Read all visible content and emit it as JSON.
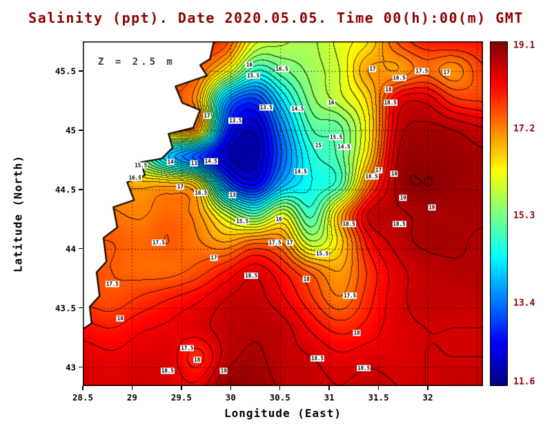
{
  "title": "Salinity (ppt). Date 2020.05.05. Time 00(h):00(m) GMT",
  "annotation": "Z = 2.5 m",
  "axes": {
    "x_label": "Longitude (East)",
    "y_label": "Latitude (North)",
    "x_ticks": [
      {
        "value": 28.5,
        "label": "28.5"
      },
      {
        "value": 29,
        "label": "29"
      },
      {
        "value": 29.5,
        "label": "29.5"
      },
      {
        "value": 30,
        "label": "30"
      },
      {
        "value": 30.5,
        "label": "30.5"
      },
      {
        "value": 31,
        "label": "31"
      },
      {
        "value": 31.5,
        "label": "31.5"
      },
      {
        "value": 32,
        "label": "32"
      }
    ],
    "y_ticks": [
      {
        "value": 45.5,
        "label": "45.5"
      },
      {
        "value": 45,
        "label": "45"
      },
      {
        "value": 44.5,
        "label": "44.5"
      },
      {
        "value": 44,
        "label": "44"
      },
      {
        "value": 43.5,
        "label": "43.5"
      },
      {
        "value": 43,
        "label": "43"
      }
    ],
    "x_gridlines": [
      29,
      29.5,
      30,
      30.5,
      31,
      31.5,
      32,
      32.5
    ],
    "y_gridlines": [
      43,
      43.5,
      44,
      44.5,
      45,
      45.5
    ]
  },
  "colorbar": {
    "min": 11.6,
    "max": 19.1,
    "tick_labels": [
      {
        "value": 19.1,
        "label": "19.1"
      },
      {
        "value": 17.2,
        "label": "17.2"
      },
      {
        "value": 15.3,
        "label": "15.3"
      },
      {
        "value": 13.4,
        "label": "13.4"
      },
      {
        "value": 11.6,
        "label": "11.6"
      }
    ]
  },
  "colors": {
    "title_text": "#8b0000",
    "colorbar_label_text": "#8b0000",
    "axis_text": "#000000",
    "annotation_text": "#3c3c3c",
    "land_fill": "#ffffff",
    "coastline": "#000000",
    "contour_line": "#000000",
    "gridline": "rgba(0,0,0,0.65)"
  },
  "chart_data": {
    "type": "heatmap",
    "variable": "Salinity (ppt)",
    "depth_label": "Z = 2.5 m",
    "datetime": "2020.05.05 00(h):00(m) GMT",
    "colormap": "jet",
    "value_range": [
      11.6,
      19.1
    ],
    "contour_interval": 0.25,
    "lon_range": [
      28.5,
      32.56
    ],
    "lat_range": [
      42.84,
      45.75
    ],
    "grid_lons": [
      28.5,
      28.79,
      29.08,
      29.37,
      29.66,
      29.95,
      30.24,
      30.53,
      30.82,
      31.11,
      31.4,
      31.69,
      31.98,
      32.27,
      32.56
    ],
    "grid_lats": [
      45.75,
      45.51,
      45.27,
      45.02,
      44.78,
      44.54,
      44.29,
      44.05,
      43.81,
      43.57,
      43.32,
      43.08,
      42.84
    ],
    "salinity_values": [
      [
        18.0,
        18.0,
        17.9,
        17.8,
        17.8,
        17.6,
        16.1,
        15.8,
        15.7,
        16.1,
        16.5,
        17.5,
        17.9,
        18.0,
        18.0
      ],
      [
        17.9,
        17.9,
        17.8,
        17.7,
        17.5,
        16.4,
        14.8,
        15.2,
        15.6,
        16.0,
        17.0,
        17.0,
        17.4,
        17.1,
        17.7
      ],
      [
        17.7,
        17.7,
        17.6,
        17.5,
        17.0,
        13.8,
        13.0,
        14.3,
        15.4,
        15.9,
        16.6,
        18.2,
        18.4,
        17.8,
        17.7
      ],
      [
        17.5,
        17.5,
        17.4,
        17.3,
        17.2,
        13.0,
        12.1,
        13.6,
        15.0,
        15.2,
        16.4,
        18.5,
        18.8,
        18.7,
        18.5
      ],
      [
        17.0,
        16.5,
        15.5,
        14.0,
        13.1,
        12.1,
        11.9,
        13.3,
        14.6,
        15.1,
        16.6,
        18.7,
        18.9,
        18.9,
        18.8
      ],
      [
        17.2,
        17.0,
        16.9,
        16.9,
        16.5,
        13.4,
        12.5,
        13.9,
        14.5,
        15.0,
        17.4,
        18.8,
        19.0,
        18.9,
        18.8
      ],
      [
        17.4,
        17.3,
        17.2,
        17.4,
        17.1,
        15.9,
        15.0,
        16.0,
        14.9,
        16.8,
        18.5,
        18.7,
        18.8,
        18.8,
        18.8
      ],
      [
        17.5,
        17.5,
        17.4,
        17.5,
        17.3,
        17.0,
        17.4,
        17.2,
        15.8,
        16.6,
        18.1,
        18.6,
        18.8,
        18.8,
        18.7
      ],
      [
        17.6,
        17.5,
        17.4,
        17.4,
        17.6,
        18.0,
        18.4,
        18.0,
        17.4,
        17.0,
        17.8,
        18.4,
        18.6,
        18.7,
        18.7
      ],
      [
        17.7,
        17.6,
        17.8,
        18.0,
        18.2,
        18.5,
        18.6,
        18.3,
        17.8,
        17.3,
        17.9,
        18.4,
        18.6,
        18.6,
        18.6
      ],
      [
        18.1,
        18.0,
        18.2,
        18.3,
        18.4,
        18.6,
        18.7,
        18.6,
        18.2,
        17.9,
        18.1,
        18.4,
        18.5,
        18.5,
        18.5
      ],
      [
        18.4,
        18.3,
        18.4,
        18.4,
        17.9,
        18.6,
        18.8,
        18.6,
        18.5,
        18.3,
        18.4,
        18.4,
        18.5,
        18.5,
        18.5
      ],
      [
        18.5,
        18.4,
        18.5,
        18.4,
        18.3,
        18.95,
        18.9,
        18.7,
        18.6,
        18.5,
        18.6,
        18.5,
        18.5,
        18.6,
        18.6
      ]
    ],
    "contour_labels": [
      {
        "text": "16",
        "lon": 30.19,
        "lat": 45.55
      },
      {
        "text": "15.5",
        "lon": 30.23,
        "lat": 45.46
      },
      {
        "text": "16.5",
        "lon": 30.52,
        "lat": 45.52
      },
      {
        "text": "17",
        "lon": 31.44,
        "lat": 45.52
      },
      {
        "text": "16.5",
        "lon": 31.71,
        "lat": 45.44
      },
      {
        "text": "17.5",
        "lon": 31.94,
        "lat": 45.5
      },
      {
        "text": "17",
        "lon": 32.19,
        "lat": 45.49
      },
      {
        "text": "18",
        "lon": 31.6,
        "lat": 45.34
      },
      {
        "text": "18.5",
        "lon": 31.62,
        "lat": 45.23
      },
      {
        "text": "13.5",
        "lon": 30.36,
        "lat": 45.19
      },
      {
        "text": "14.5",
        "lon": 30.68,
        "lat": 45.18
      },
      {
        "text": "16",
        "lon": 31.02,
        "lat": 45.23
      },
      {
        "text": "13.5",
        "lon": 30.05,
        "lat": 45.08
      },
      {
        "text": "17",
        "lon": 29.76,
        "lat": 45.12
      },
      {
        "text": "15.5",
        "lon": 31.07,
        "lat": 44.94
      },
      {
        "text": "15",
        "lon": 30.89,
        "lat": 44.87
      },
      {
        "text": "14.5",
        "lon": 31.15,
        "lat": 44.86
      },
      {
        "text": "15.5",
        "lon": 29.09,
        "lat": 44.7
      },
      {
        "text": "14",
        "lon": 29.39,
        "lat": 44.73
      },
      {
        "text": "13",
        "lon": 29.63,
        "lat": 44.72
      },
      {
        "text": "14.5",
        "lon": 29.8,
        "lat": 44.74
      },
      {
        "text": "16.5",
        "lon": 29.03,
        "lat": 44.6
      },
      {
        "text": "14.5",
        "lon": 30.71,
        "lat": 44.65
      },
      {
        "text": "17",
        "lon": 31.5,
        "lat": 44.66
      },
      {
        "text": "18.5",
        "lon": 31.43,
        "lat": 44.61
      },
      {
        "text": "18",
        "lon": 31.66,
        "lat": 44.63
      },
      {
        "text": "17",
        "lon": 29.49,
        "lat": 44.52
      },
      {
        "text": "16.5",
        "lon": 29.7,
        "lat": 44.47
      },
      {
        "text": "13",
        "lon": 30.02,
        "lat": 44.45
      },
      {
        "text": "19",
        "lon": 31.75,
        "lat": 44.43
      },
      {
        "text": "19",
        "lon": 32.04,
        "lat": 44.35
      },
      {
        "text": "15.5",
        "lon": 30.12,
        "lat": 44.23
      },
      {
        "text": "16",
        "lon": 30.49,
        "lat": 44.25
      },
      {
        "text": "18.5",
        "lon": 31.2,
        "lat": 44.21
      },
      {
        "text": "18.5",
        "lon": 31.71,
        "lat": 44.21
      },
      {
        "text": "17.5",
        "lon": 29.27,
        "lat": 44.05
      },
      {
        "text": "17.5",
        "lon": 30.45,
        "lat": 44.05
      },
      {
        "text": "17",
        "lon": 30.6,
        "lat": 44.05
      },
      {
        "text": "17",
        "lon": 29.83,
        "lat": 43.92
      },
      {
        "text": "15.5",
        "lon": 30.93,
        "lat": 43.96
      },
      {
        "text": "18.5",
        "lon": 30.21,
        "lat": 43.77
      },
      {
        "text": "18",
        "lon": 30.77,
        "lat": 43.74
      },
      {
        "text": "17.5",
        "lon": 28.8,
        "lat": 43.7
      },
      {
        "text": "17.5",
        "lon": 31.21,
        "lat": 43.6
      },
      {
        "text": "18",
        "lon": 28.88,
        "lat": 43.41
      },
      {
        "text": "18",
        "lon": 31.28,
        "lat": 43.29
      },
      {
        "text": "17.5",
        "lon": 29.56,
        "lat": 43.16
      },
      {
        "text": "18",
        "lon": 29.66,
        "lat": 43.06
      },
      {
        "text": "18.5",
        "lon": 29.36,
        "lat": 42.97
      },
      {
        "text": "19",
        "lon": 29.93,
        "lat": 42.97
      },
      {
        "text": "18.5",
        "lon": 30.88,
        "lat": 43.07
      },
      {
        "text": "18.5",
        "lon": 31.35,
        "lat": 42.99
      }
    ],
    "coastline": [
      [
        29.83,
        45.75
      ],
      [
        29.79,
        45.6
      ],
      [
        29.69,
        45.55
      ],
      [
        29.76,
        45.46
      ],
      [
        29.44,
        45.37
      ],
      [
        29.51,
        45.23
      ],
      [
        29.69,
        45.17
      ],
      [
        29.62,
        45.02
      ],
      [
        29.37,
        44.97
      ],
      [
        29.41,
        44.85
      ],
      [
        29.3,
        44.76
      ],
      [
        29.09,
        44.73
      ],
      [
        29.13,
        44.62
      ],
      [
        28.95,
        44.56
      ],
      [
        29.02,
        44.41
      ],
      [
        28.81,
        44.35
      ],
      [
        28.85,
        44.18
      ],
      [
        28.71,
        44.09
      ],
      [
        28.74,
        43.89
      ],
      [
        28.64,
        43.8
      ],
      [
        28.67,
        43.6
      ],
      [
        28.57,
        43.51
      ],
      [
        28.59,
        43.37
      ],
      [
        28.5,
        43.32
      ]
    ]
  }
}
